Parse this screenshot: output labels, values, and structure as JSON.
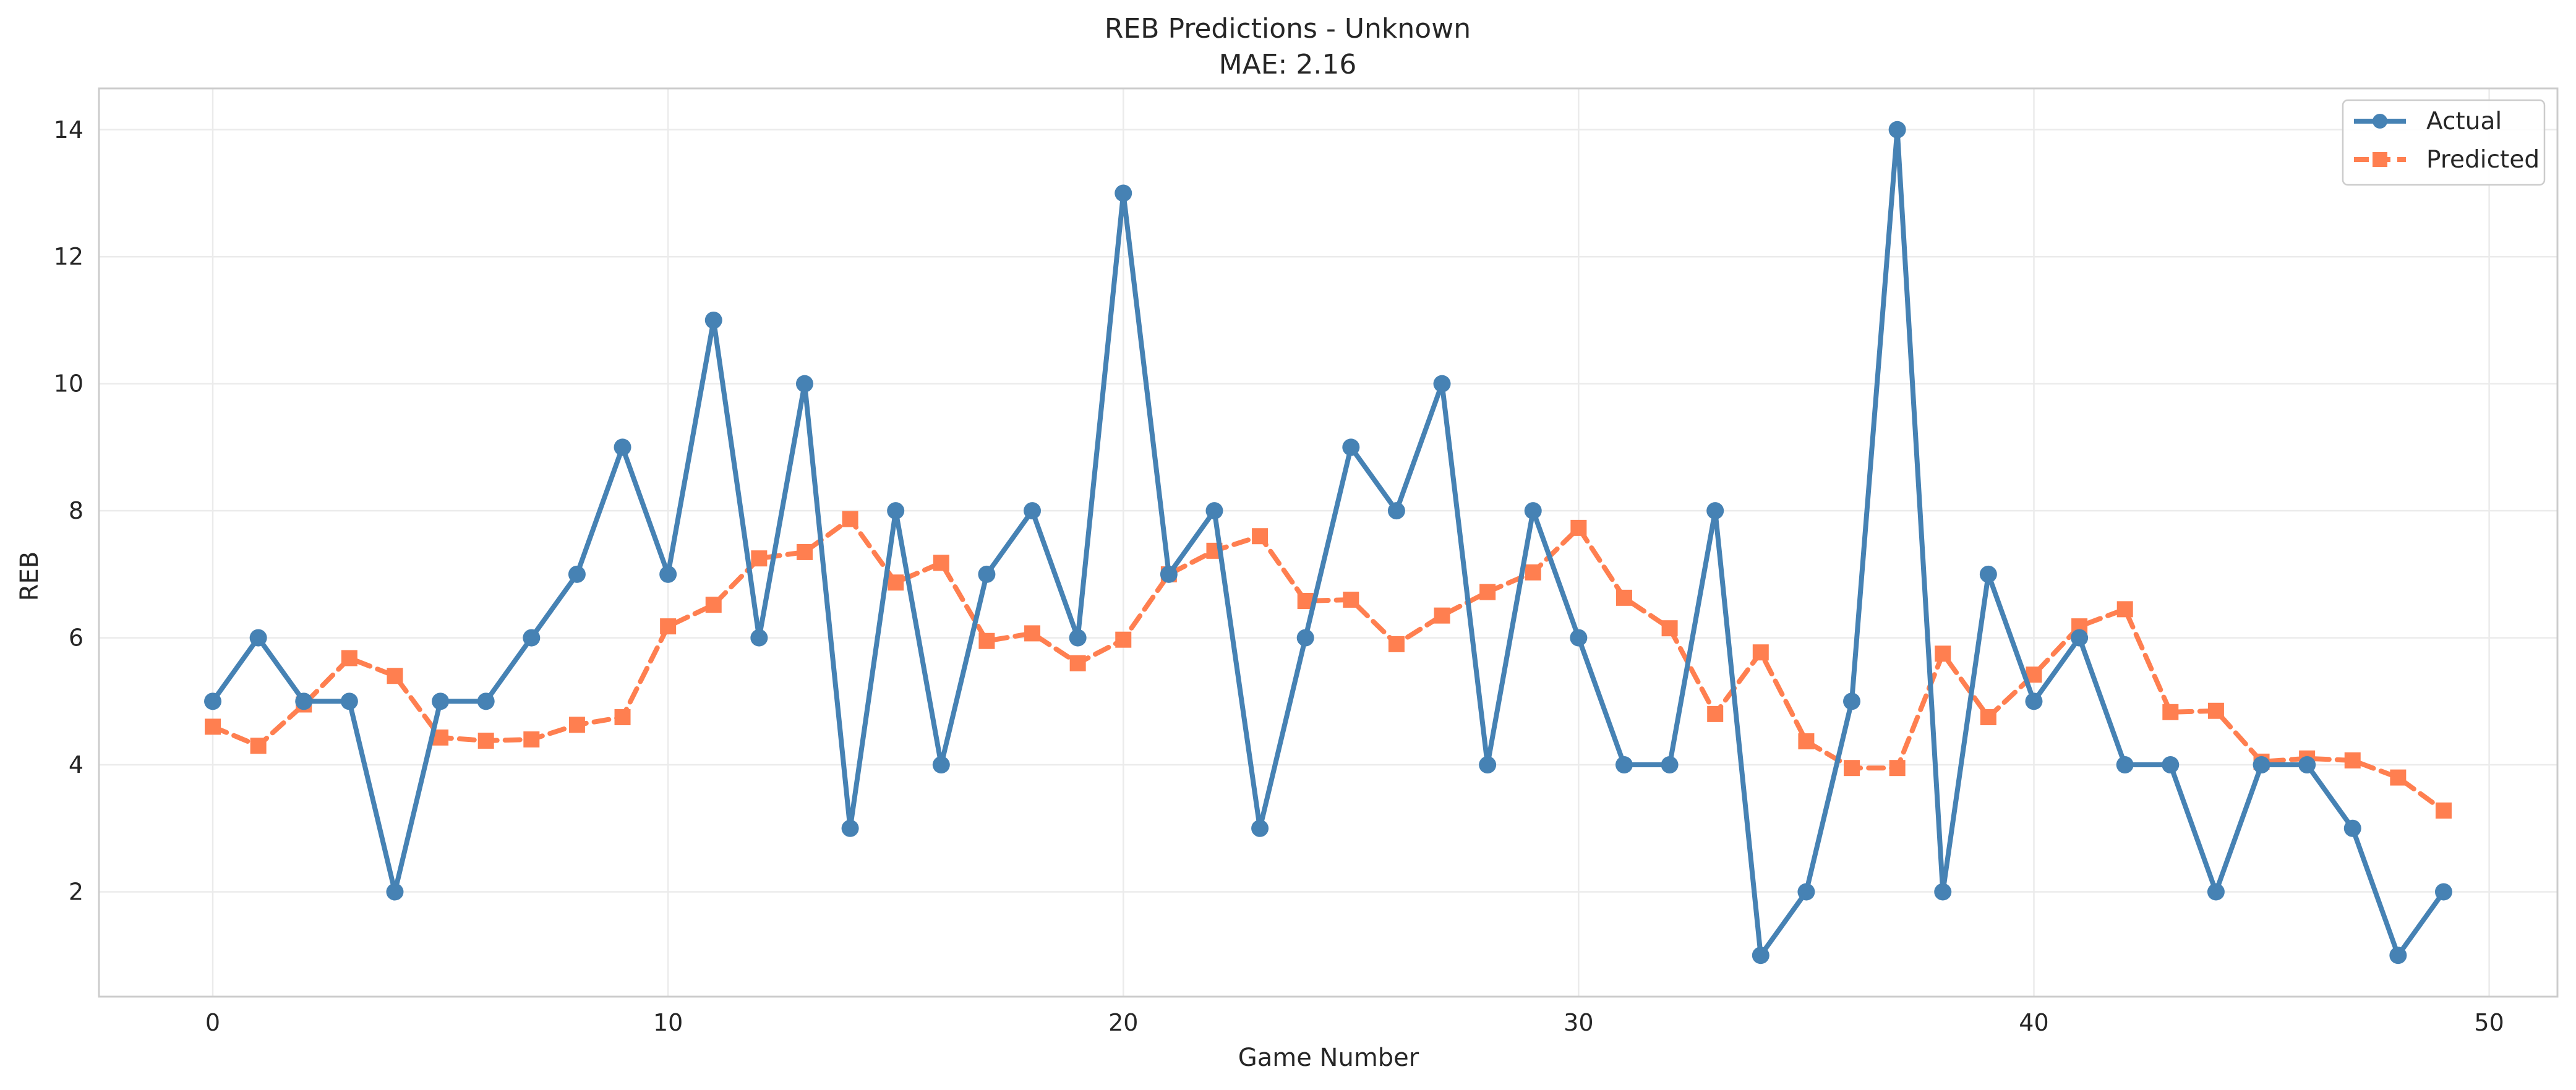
{
  "chart_data": {
    "type": "line",
    "title": "REB Predictions - Unknown",
    "subtitle": "MAE: 2.16",
    "xlabel": "Game Number",
    "ylabel": "REB",
    "xlim": [
      -2.5,
      51.5
    ],
    "ylim": [
      0.35,
      14.65
    ],
    "x_ticks": [
      0,
      10,
      20,
      30,
      40,
      50
    ],
    "y_ticks": [
      2,
      4,
      6,
      8,
      10,
      12,
      14
    ],
    "grid": true,
    "legend_position": "top-right",
    "x": [
      0,
      1,
      2,
      3,
      4,
      5,
      6,
      7,
      8,
      9,
      10,
      11,
      12,
      13,
      14,
      15,
      16,
      17,
      18,
      19,
      20,
      21,
      22,
      23,
      24,
      25,
      26,
      27,
      28,
      29,
      30,
      31,
      32,
      33,
      34,
      35,
      36,
      37,
      38,
      39,
      40,
      41,
      42,
      43,
      44,
      45,
      46,
      47,
      48,
      49
    ],
    "series": [
      {
        "name": "Actual",
        "color": "#4682b4",
        "marker": "circle",
        "line_style": "solid",
        "values": [
          5,
          6,
          5,
          5,
          2,
          5,
          5,
          6,
          7,
          9,
          7,
          11,
          6,
          10,
          3,
          8,
          4,
          7,
          8,
          6,
          13,
          7,
          8,
          3,
          6,
          9,
          8,
          10,
          4,
          8,
          6,
          4,
          4,
          8,
          1,
          2,
          5,
          14,
          2,
          7,
          5,
          6,
          4,
          4,
          2,
          4,
          4,
          3,
          1,
          2
        ]
      },
      {
        "name": "Predicted",
        "color": "#ff7f50",
        "marker": "square",
        "line_style": "dashed",
        "values": [
          4.6,
          4.3,
          4.95,
          5.68,
          5.4,
          4.43,
          4.38,
          4.4,
          4.63,
          4.75,
          6.18,
          6.52,
          7.25,
          7.35,
          7.87,
          6.87,
          7.18,
          5.95,
          6.07,
          5.6,
          5.97,
          7.0,
          7.37,
          7.6,
          6.58,
          6.6,
          5.9,
          6.35,
          6.72,
          7.03,
          7.73,
          6.63,
          6.15,
          4.8,
          5.77,
          4.37,
          3.95,
          3.95,
          5.75,
          4.75,
          5.42,
          6.18,
          6.45,
          4.83,
          4.85,
          4.05,
          4.1,
          4.07,
          3.8,
          3.28
        ]
      }
    ]
  }
}
